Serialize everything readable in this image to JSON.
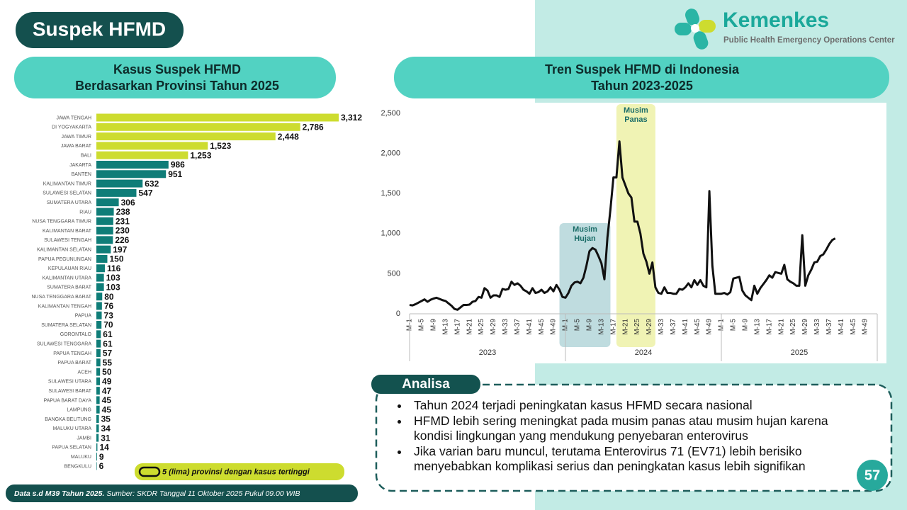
{
  "header": {
    "title": "Suspek HFMD"
  },
  "logo": {
    "name": "Kemenkes",
    "subtitle": "Public Health Emergency Operations Center"
  },
  "chart_data": [
    {
      "type": "hbar",
      "title": [
        "Kasus Suspek HFMD",
        "Berdasarkan Provinsi Tahun 2025"
      ],
      "categories": [
        "JAWA TENGAH",
        "DI YOGYAKARTA",
        "JAWA TIMUR",
        "JAWA BARAT",
        "BALI",
        "JAKARTA",
        "BANTEN",
        "KALIMANTAN TIMUR",
        "SULAWESI SELATAN",
        "SUMATERA UTARA",
        "RIAU",
        "NUSA TENGGARA TIMUR",
        "KALIMANTAN BARAT",
        "SULAWESI TENGAH",
        "KALIMANTAN SELATAN",
        "PAPUA PEGUNUNGAN",
        "KEPULAUAN RIAU",
        "KALIMANTAN UTARA",
        "SUMATERA BARAT",
        "NUSA TENGGARA BARAT",
        "KALIMANTAN TENGAH",
        "PAPUA",
        "SUMATERA SELATAN",
        "GORONTALO",
        "SULAWESI TENGGARA",
        "PAPUA TENGAH",
        "PAPUA BARAT",
        "ACEH",
        "SULAWESI UTARA",
        "SULAWESI BARAT",
        "PAPUA BARAT DAYA",
        "LAMPUNG",
        "BANGKA BELITUNG",
        "MALUKU UTARA",
        "JAMBI",
        "PAPUA SELATAN",
        "MALUKU",
        "BENGKULU"
      ],
      "values": [
        3312,
        2786,
        2448,
        1523,
        1253,
        986,
        951,
        632,
        547,
        306,
        238,
        231,
        230,
        226,
        197,
        150,
        116,
        103,
        103,
        80,
        76,
        73,
        70,
        61,
        61,
        57,
        55,
        50,
        49,
        47,
        45,
        45,
        35,
        34,
        31,
        14,
        9,
        6
      ],
      "value_labels": [
        "3,312",
        "2,786",
        "2,448",
        "1,523",
        "1,253",
        "986",
        "951",
        "632",
        "547",
        "306",
        "238",
        "231",
        "230",
        "226",
        "197",
        "150",
        "116",
        "103",
        "103",
        "80",
        "76",
        "73",
        "70",
        "61",
        "61",
        "57",
        "55",
        "50",
        "49",
        "47",
        "45",
        "45",
        "35",
        "34",
        "31",
        "14",
        "9",
        "6"
      ],
      "colors": [
        "#cddc2f",
        "#cddc2f",
        "#cddc2f",
        "#cddc2f",
        "#cddc2f",
        "#0f7d78",
        "#0f7d78",
        "#0f7d78",
        "#0f7d78",
        "#0f7d78",
        "#0f7d78",
        "#0f7d78",
        "#0f7d78",
        "#0f7d78",
        "#0f7d78",
        "#0f7d78",
        "#0f7d78",
        "#0f7d78",
        "#0f7d78",
        "#0f7d78",
        "#0f7d78",
        "#0f7d78",
        "#0f7d78",
        "#0f7d78",
        "#0f7d78",
        "#0f7d78",
        "#0f7d78",
        "#0f7d78",
        "#0f7d78",
        "#0f7d78",
        "#0f7d78",
        "#0f7d78",
        "#0f7d78",
        "#0f7d78",
        "#0f7d78",
        "#0f7d78",
        "#0f7d78",
        "#0f7d78"
      ],
      "legend": "5 (lima) provinsi dengan kasus tertinggi"
    },
    {
      "type": "line",
      "title": [
        "Tren Suspek HFMD di Indonesia",
        "Tahun 2023-2025"
      ],
      "categories": [
        "M-1",
        null,
        null,
        null,
        "M-5",
        null,
        null,
        null,
        "M-9",
        null,
        null,
        null,
        "M-13",
        null,
        null,
        null,
        "M-17",
        null,
        null,
        null,
        "M-21",
        null,
        null,
        null,
        "M-25",
        null,
        null,
        null,
        "M-29",
        null,
        null,
        null,
        "M-33",
        null,
        null,
        null,
        "M-37",
        null,
        null,
        null,
        "M-41",
        null,
        null,
        null,
        "M-45",
        null,
        null,
        null,
        "M-49",
        null,
        null,
        null,
        "M-1",
        null,
        null,
        null,
        "M-5",
        null,
        null,
        null,
        "M-9",
        null,
        null,
        null,
        "M-13",
        null,
        null,
        null,
        "M-17",
        null,
        null,
        null,
        "M-21",
        null,
        null,
        null,
        "M-25",
        null,
        null,
        null,
        "M-29",
        null,
        null,
        null,
        "M-33",
        null,
        null,
        null,
        "M-37",
        null,
        null,
        null,
        "M-41",
        null,
        null,
        null,
        "M-45",
        null,
        null,
        null,
        "M-49",
        null,
        null,
        null,
        "M-1",
        null,
        null,
        null,
        "M-5",
        null,
        null,
        null,
        "M-9",
        null,
        null,
        null,
        "M-13",
        null,
        null,
        null,
        "M-17",
        null,
        null,
        null,
        "M-21",
        null,
        null,
        null,
        "M-25",
        null,
        null,
        null,
        "M-29",
        null,
        null,
        null,
        "M-33",
        null,
        null,
        null,
        "M-37",
        null,
        null,
        null,
        "M-41",
        null,
        null,
        null,
        "M-45",
        null,
        null,
        null,
        "M-49",
        null,
        null,
        null
      ],
      "groups": [
        "2023",
        "2024",
        "2025"
      ],
      "values": [
        110,
        105,
        120,
        140,
        160,
        180,
        150,
        175,
        190,
        200,
        185,
        170,
        160,
        130,
        100,
        60,
        50,
        80,
        110,
        110,
        115,
        150,
        160,
        210,
        200,
        320,
        290,
        200,
        230,
        230,
        210,
        310,
        300,
        310,
        400,
        360,
        380,
        350,
        300,
        280,
        250,
        320,
        260,
        270,
        300,
        260,
        280,
        330,
        280,
        360,
        300,
        210,
        200,
        260,
        350,
        390,
        400,
        380,
        450,
        600,
        780,
        820,
        800,
        720,
        630,
        430,
        950,
        1300,
        1700,
        1700,
        2150,
        1700,
        1600,
        1500,
        1450,
        1150,
        1150,
        1000,
        750,
        650,
        500,
        640,
        330,
        260,
        250,
        330,
        260,
        260,
        250,
        250,
        310,
        300,
        330,
        380,
        330,
        420,
        360,
        420,
        350,
        330,
        1530,
        600,
        250,
        250,
        250,
        260,
        240,
        270,
        440,
        450,
        460,
        290,
        230,
        200,
        170,
        350,
        250,
        320,
        370,
        420,
        480,
        450,
        520,
        510,
        500,
        610,
        430,
        400,
        380,
        350,
        350,
        980,
        350,
        480,
        550,
        640,
        650,
        720,
        740,
        800,
        870,
        920,
        940,
        null,
        null,
        null,
        null,
        null,
        null,
        null,
        null,
        null,
        null,
        null,
        null,
        null
      ],
      "color": "#111111",
      "ylim": [
        0,
        2500
      ],
      "yticks": [
        0,
        500,
        {
          "value": 1000,
          "label": "1,000"
        },
        {
          "value": 1500,
          "label": "1,500"
        },
        {
          "value": 2000,
          "label": "2,000"
        },
        {
          "value": 2500,
          "label": "2,500"
        }
      ],
      "annotations": [
        {
          "text": [
            "Musim",
            "Hujan"
          ],
          "from": 50,
          "to": 67,
          "color": "#bfdcdf"
        },
        {
          "text": [
            "Musim",
            "Panas"
          ],
          "from": 69,
          "to": 82,
          "color": "#f0f3b4"
        }
      ]
    }
  ],
  "analysis": {
    "title": "Analisa",
    "bullets": [
      "Tahun 2024 terjadi peningkatan kasus HFMD secara nasional",
      "HFMD lebih sering meningkat pada musim panas atau musim hujan karena kondisi lingkungan yang mendukung penyebaran enterovirus",
      "Jika varian baru muncul, terutama Enterovirus 71 (EV71) lebih berisiko menyebabkan komplikasi serius dan peningkatan kasus lebih signifikan"
    ]
  },
  "footer": {
    "note": "Data s.d M39 Tahun 2025.",
    "source": "Sumber: SKDR Tanggal 11 Oktober 2025 Pukul 09.00 WIB"
  },
  "page_number": 57
}
